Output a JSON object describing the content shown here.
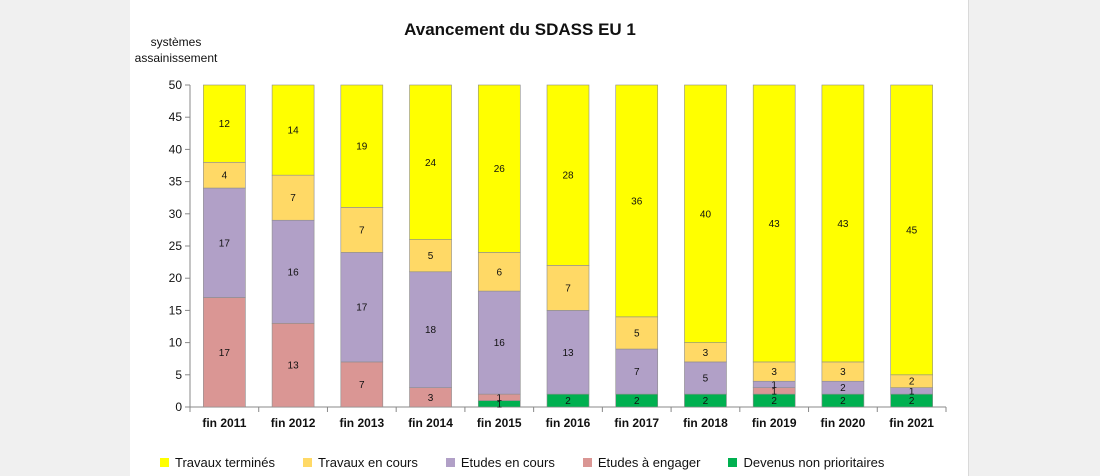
{
  "chart_data": {
    "type": "bar",
    "stacked": true,
    "title": "Avancement du SDASS EU 1",
    "ylabel": "systèmes assainissement",
    "ylim": [
      0,
      50
    ],
    "yticks": [
      0,
      5,
      10,
      15,
      20,
      25,
      30,
      35,
      40,
      45,
      50
    ],
    "legend_position": "bottom",
    "categories": [
      "fin 2011",
      "fin 2012",
      "fin 2013",
      "fin 2014",
      "fin 2015",
      "fin 2016",
      "fin 2017",
      "fin 2018",
      "fin 2019",
      "fin 2020",
      "fin 2021"
    ],
    "series": [
      {
        "name": "Devenus non prioritaires",
        "color": "#00b050",
        "values": [
          0,
          0,
          0,
          0,
          1,
          2,
          2,
          2,
          2,
          2,
          2
        ]
      },
      {
        "name": "Etudes à engager",
        "color": "#da9694",
        "values": [
          17,
          13,
          7,
          3,
          1,
          0,
          0,
          0,
          1,
          0,
          0
        ]
      },
      {
        "name": "Etudes en cours",
        "color": "#b1a0c7",
        "values": [
          17,
          16,
          17,
          18,
          16,
          13,
          7,
          5,
          1,
          2,
          1
        ]
      },
      {
        "name": "Travaux en cours",
        "color": "#ffd966",
        "values": [
          4,
          7,
          7,
          5,
          6,
          7,
          5,
          3,
          3,
          3,
          2
        ]
      },
      {
        "name": "Travaux terminés",
        "color": "#ffff00",
        "values": [
          12,
          14,
          19,
          24,
          26,
          28,
          36,
          40,
          43,
          43,
          45
        ]
      }
    ]
  },
  "legend_order": [
    4,
    3,
    2,
    1,
    0
  ]
}
